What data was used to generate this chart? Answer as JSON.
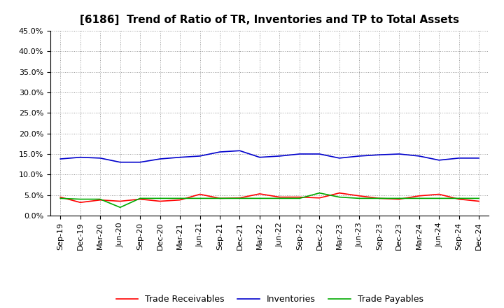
{
  "title": "[6186]  Trend of Ratio of TR, Inventories and TP to Total Assets",
  "labels": [
    "Sep-19",
    "Dec-19",
    "Mar-20",
    "Jun-20",
    "Sep-20",
    "Dec-20",
    "Mar-21",
    "Jun-21",
    "Sep-21",
    "Dec-21",
    "Mar-22",
    "Jun-22",
    "Sep-22",
    "Dec-22",
    "Mar-23",
    "Jun-23",
    "Sep-23",
    "Dec-23",
    "Mar-24",
    "Jun-24",
    "Sep-24",
    "Dec-24"
  ],
  "trade_receivables": [
    4.5,
    3.2,
    3.8,
    3.5,
    4.0,
    3.5,
    3.8,
    5.2,
    4.2,
    4.3,
    5.3,
    4.5,
    4.5,
    4.3,
    5.5,
    4.8,
    4.2,
    4.0,
    4.8,
    5.2,
    4.0,
    3.5
  ],
  "inventories": [
    13.8,
    14.2,
    14.0,
    13.0,
    13.0,
    13.8,
    14.2,
    14.5,
    15.5,
    15.8,
    14.2,
    14.5,
    15.0,
    15.0,
    14.0,
    14.5,
    14.8,
    15.0,
    14.5,
    13.5,
    14.0,
    14.0
  ],
  "trade_payables": [
    4.2,
    4.0,
    4.0,
    2.0,
    4.2,
    4.2,
    4.2,
    4.2,
    4.2,
    4.2,
    4.2,
    4.2,
    4.2,
    5.5,
    4.5,
    4.2,
    4.2,
    4.2,
    4.2,
    4.2,
    4.2,
    4.2
  ],
  "tr_color": "#ff0000",
  "inv_color": "#0000cc",
  "tp_color": "#00aa00",
  "ylim": [
    0,
    45
  ],
  "yticks": [
    0,
    5,
    10,
    15,
    20,
    25,
    30,
    35,
    40,
    45
  ],
  "background_color": "#ffffff",
  "grid_color": "#999999",
  "title_fontsize": 11,
  "tick_fontsize": 8,
  "legend_fontsize": 9
}
